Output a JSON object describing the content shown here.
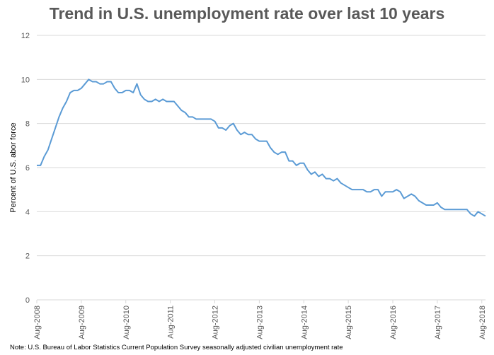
{
  "chart_data": {
    "type": "line",
    "title": "Trend in U.S. unemployment rate over last 10 years",
    "xlabel": "",
    "ylabel": "Percent of U.S. abor force",
    "ylim": [
      0,
      12
    ],
    "yticks": [
      0,
      2,
      4,
      6,
      8,
      10,
      12
    ],
    "xticks": [
      "Aug-2008",
      "Aug-2009",
      "Aug-2010",
      "Aug-2011",
      "Aug-2012",
      "Aug-2013",
      "Aug-2014",
      "Aug-2015",
      "Aug-2016",
      "Aug-2017",
      "Aug-2018"
    ],
    "grid": true,
    "note": "Note: U.S. Bureau of Labor Statistics Current Population Survey seasonally adjusted civilian unemployment rate",
    "series": [
      {
        "name": "Unemployment rate",
        "color": "#5b9bd5",
        "start": "Aug-2008",
        "frequency": "monthly",
        "values": [
          6.1,
          6.1,
          6.5,
          6.8,
          7.3,
          7.8,
          8.3,
          8.7,
          9.0,
          9.4,
          9.5,
          9.5,
          9.6,
          9.8,
          10.0,
          9.9,
          9.9,
          9.8,
          9.8,
          9.9,
          9.9,
          9.6,
          9.4,
          9.4,
          9.5,
          9.5,
          9.4,
          9.8,
          9.3,
          9.1,
          9.0,
          9.0,
          9.1,
          9.0,
          9.1,
          9.0,
          9.0,
          9.0,
          8.8,
          8.6,
          8.5,
          8.3,
          8.3,
          8.2,
          8.2,
          8.2,
          8.2,
          8.2,
          8.1,
          7.8,
          7.8,
          7.7,
          7.9,
          8.0,
          7.7,
          7.5,
          7.6,
          7.5,
          7.5,
          7.3,
          7.2,
          7.2,
          7.2,
          6.9,
          6.7,
          6.6,
          6.7,
          6.7,
          6.3,
          6.3,
          6.1,
          6.2,
          6.2,
          5.9,
          5.7,
          5.8,
          5.6,
          5.7,
          5.5,
          5.5,
          5.4,
          5.5,
          5.3,
          5.2,
          5.1,
          5.0,
          5.0,
          5.0,
          5.0,
          4.9,
          4.9,
          5.0,
          5.0,
          4.7,
          4.9,
          4.9,
          4.9,
          5.0,
          4.9,
          4.6,
          4.7,
          4.8,
          4.7,
          4.5,
          4.4,
          4.3,
          4.3,
          4.3,
          4.4,
          4.2,
          4.1,
          4.1,
          4.1,
          4.1,
          4.1,
          4.1,
          4.1,
          3.9,
          3.8,
          4.0,
          3.9,
          3.8
        ]
      }
    ]
  }
}
